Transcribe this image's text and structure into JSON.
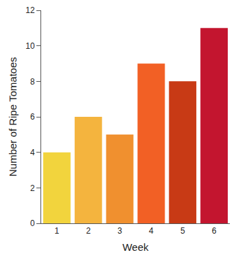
{
  "chart_data": {
    "type": "bar",
    "x_label": "Week",
    "y_label": "Number of Ripe Tomatoes",
    "categories": [
      "1",
      "2",
      "3",
      "4",
      "5",
      "6"
    ],
    "values": [
      4,
      6,
      5,
      9,
      8,
      11
    ],
    "colors": [
      "#f2d43d",
      "#f4b43e",
      "#f0902f",
      "#f26025",
      "#c83a15",
      "#c3152f"
    ],
    "ylim": [
      0,
      12
    ],
    "yticks": [
      0,
      2,
      4,
      6,
      8,
      10,
      12
    ],
    "grid": false
  }
}
